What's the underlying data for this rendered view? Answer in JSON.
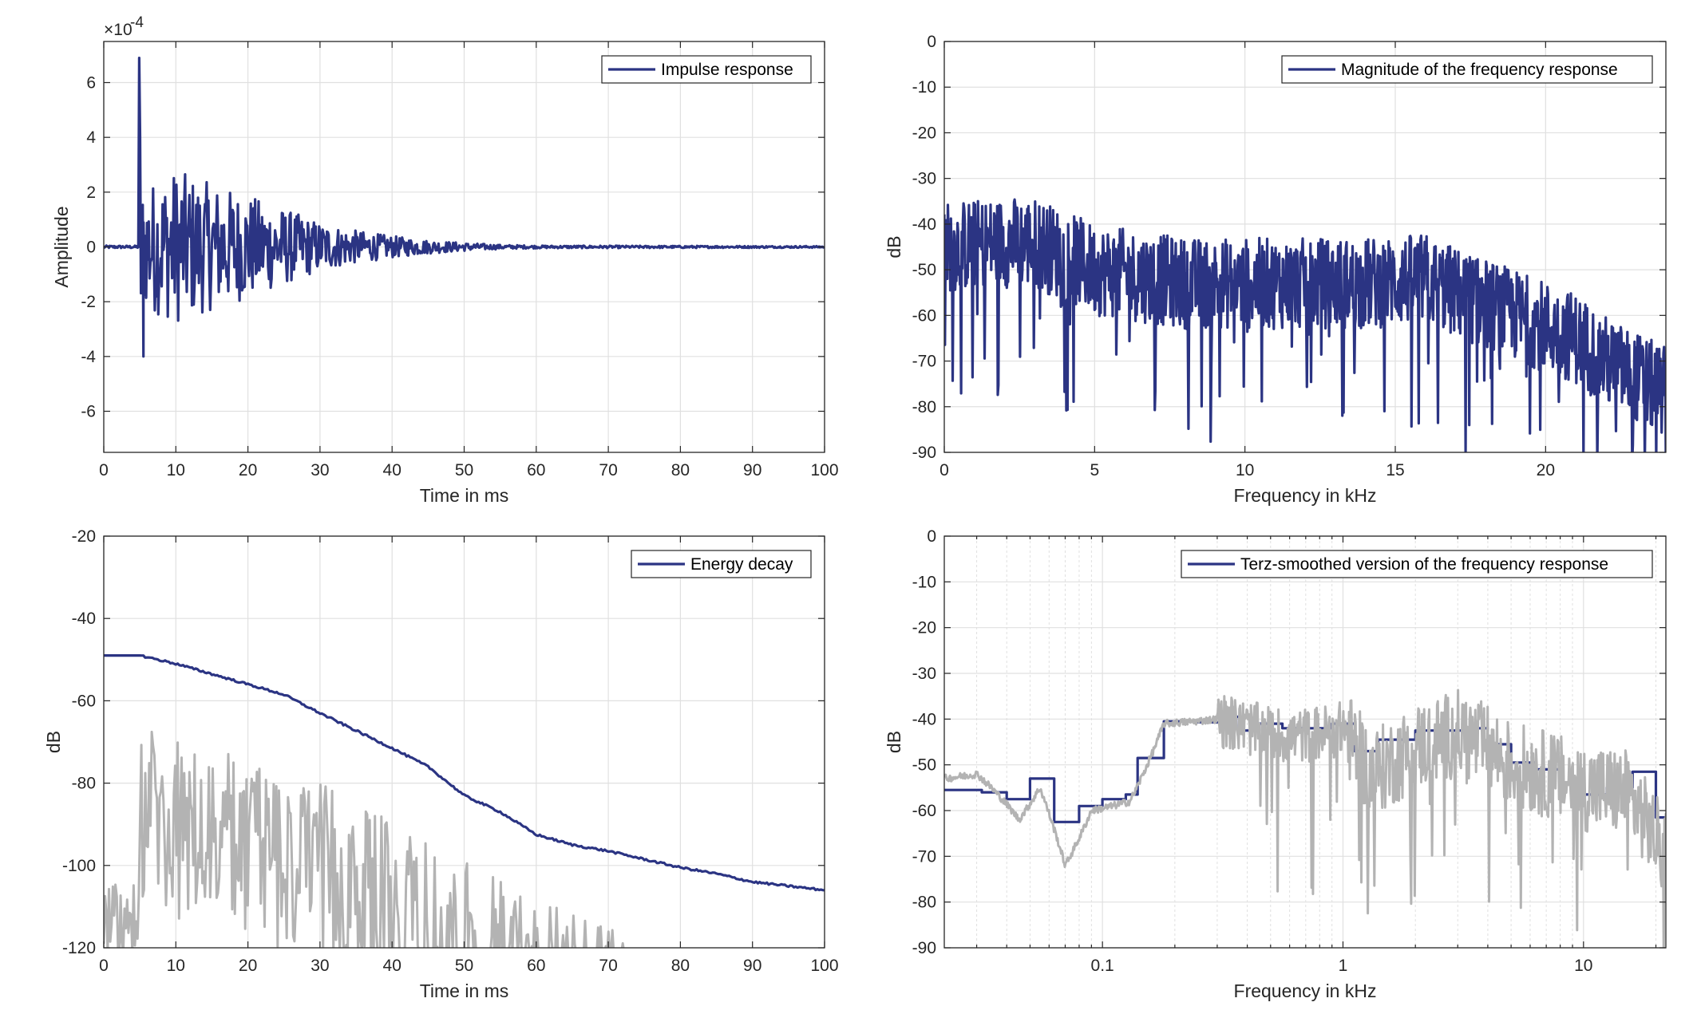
{
  "colors": {
    "primary": "#2b3483",
    "secondary": "#b3b3b3",
    "grid": "#e0e0e0",
    "axis": "#262626"
  },
  "chart_data": [
    {
      "type": "line",
      "xlabel": "Time in ms",
      "ylabel": "Amplitude",
      "xlim": [
        0,
        100
      ],
      "ylim": [
        -7.5,
        7.5
      ],
      "y_exponent_label": "×10",
      "y_exponent_power": "-4",
      "xticks": [
        "0",
        "10",
        "20",
        "30",
        "40",
        "50",
        "60",
        "70",
        "80",
        "90",
        "100"
      ],
      "yticks": [
        "6",
        "4",
        "2",
        "0",
        "-2",
        "-4",
        "-6"
      ],
      "grid": true,
      "legend": "top-right",
      "series": [
        {
          "name": "Impulse response",
          "envelope": [
            [
              0,
              0.05
            ],
            [
              4.8,
              0.05
            ],
            [
              5.0,
              6.9
            ],
            [
              5.3,
              2.2
            ],
            [
              10,
              2.8
            ],
            [
              15,
              2.3
            ],
            [
              20,
              1.9
            ],
            [
              25,
              1.4
            ],
            [
              30,
              0.9
            ],
            [
              35,
              0.6
            ],
            [
              40,
              0.4
            ],
            [
              45,
              0.25
            ],
            [
              50,
              0.15
            ],
            [
              55,
              0.08
            ],
            [
              60,
              0.05
            ],
            [
              100,
              0.03
            ]
          ],
          "peak": {
            "x": 5.0,
            "y": 6.9
          },
          "trough": {
            "x": 5.5,
            "y": -4.0
          }
        }
      ]
    },
    {
      "type": "line",
      "xlabel": "Frequency in kHz",
      "ylabel": "dB",
      "xlim": [
        0,
        24
      ],
      "ylim": [
        -90,
        0
      ],
      "xticks": [
        "0",
        "5",
        "10",
        "15",
        "20"
      ],
      "yticks": [
        "0",
        "-10",
        "-20",
        "-30",
        "-40",
        "-50",
        "-60",
        "-70",
        "-80",
        "-90"
      ],
      "grid": true,
      "legend": "top-right",
      "series": [
        {
          "name": "Magnitude of the frequency response",
          "trend": [
            [
              0,
              -45
            ],
            [
              2,
              -44
            ],
            [
              3,
              -44
            ],
            [
              5,
              -50
            ],
            [
              8,
              -53
            ],
            [
              10,
              -53
            ],
            [
              14,
              -53
            ],
            [
              16,
              -52
            ],
            [
              17,
              -55
            ],
            [
              19,
              -60
            ],
            [
              21,
              -65
            ],
            [
              22,
              -70
            ],
            [
              24,
              -77
            ]
          ],
          "spread": 10
        }
      ]
    },
    {
      "type": "line",
      "xlabel": "Time in ms",
      "ylabel": "dB",
      "xlim": [
        0,
        100
      ],
      "ylim": [
        -120,
        -20
      ],
      "xticks": [
        "0",
        "10",
        "20",
        "30",
        "40",
        "50",
        "60",
        "70",
        "80",
        "90",
        "100"
      ],
      "yticks": [
        "-20",
        "-40",
        "-60",
        "-80",
        "-100",
        "-120"
      ],
      "grid": true,
      "legend": "top-right",
      "series": [
        {
          "name": "Energy decay",
          "x": [
            0,
            5,
            10,
            20,
            25,
            30,
            40,
            45,
            50,
            55,
            60,
            65,
            70,
            75,
            80,
            85,
            90,
            100
          ],
          "y": [
            -49,
            -49,
            -51,
            -56,
            -58.5,
            -63,
            -71.5,
            -76,
            -83,
            -87,
            -92.5,
            -95,
            -96.5,
            -98.5,
            -100.5,
            -102,
            -104,
            -106
          ]
        },
        {
          "name": "",
          "envelope": [
            [
              0,
              -104
            ],
            [
              5,
              -104
            ],
            [
              5,
              -63
            ],
            [
              10,
              -70
            ],
            [
              20,
              -73
            ],
            [
              30,
              -80
            ],
            [
              40,
              -89
            ],
            [
              50,
              -99
            ],
            [
              60,
              -108
            ],
            [
              70,
              -114
            ],
            [
              77,
              -120
            ],
            [
              100,
              -120
            ]
          ]
        }
      ]
    },
    {
      "type": "line",
      "xlabel": "Frequency in kHz",
      "ylabel": "dB",
      "xscale": "log",
      "xlim": [
        0.022,
        22
      ],
      "ylim": [
        -90,
        0
      ],
      "xticks": [
        "0.1",
        "1",
        "10"
      ],
      "yticks": [
        "0",
        "-10",
        "-20",
        "-30",
        "-40",
        "-50",
        "-60",
        "-70",
        "-80",
        "-90"
      ],
      "grid": true,
      "legend": "top-right",
      "series": [
        {
          "name": "Terz-smoothed version of the frequency response",
          "steps": [
            [
              0.022,
              -55.5
            ],
            [
              0.0315,
              -56
            ],
            [
              0.04,
              -57.5
            ],
            [
              0.05,
              -53
            ],
            [
              0.063,
              -62.5
            ],
            [
              0.08,
              -59
            ],
            [
              0.1,
              -57.5
            ],
            [
              0.125,
              -56.5
            ],
            [
              0.14,
              -48.5
            ],
            [
              0.18,
              -40.5
            ],
            [
              0.25,
              -40.7
            ],
            [
              0.315,
              -39.5
            ],
            [
              0.37,
              -42.5
            ],
            [
              0.45,
              -41
            ],
            [
              0.56,
              -42
            ],
            [
              0.9,
              -41
            ],
            [
              1.12,
              -47
            ],
            [
              1.4,
              -44.5
            ],
            [
              2.0,
              -42.5
            ],
            [
              3.15,
              -42
            ],
            [
              4.0,
              -45.5
            ],
            [
              5.0,
              -49.5
            ],
            [
              6.3,
              -51
            ],
            [
              8.0,
              -54
            ],
            [
              10,
              -56.5
            ],
            [
              12.5,
              -55
            ],
            [
              16,
              -51.5
            ],
            [
              20,
              -61.5
            ],
            [
              22,
              -61.5
            ]
          ]
        },
        {
          "name": "",
          "trend": [
            [
              0.022,
              -53
            ],
            [
              0.03,
              -52
            ],
            [
              0.045,
              -62
            ],
            [
              0.055,
              -55
            ],
            [
              0.07,
              -72
            ],
            [
              0.09,
              -60
            ],
            [
              0.13,
              -58
            ],
            [
              0.18,
              -41
            ],
            [
              0.3,
              -40
            ],
            [
              0.4,
              -42
            ],
            [
              0.6,
              -44
            ],
            [
              1,
              -42
            ],
            [
              1.3,
              -52
            ],
            [
              2,
              -46
            ],
            [
              3,
              -43
            ],
            [
              5,
              -50
            ],
            [
              10,
              -55
            ],
            [
              15,
              -56
            ],
            [
              22,
              -70
            ]
          ],
          "spread": 6
        }
      ]
    }
  ]
}
